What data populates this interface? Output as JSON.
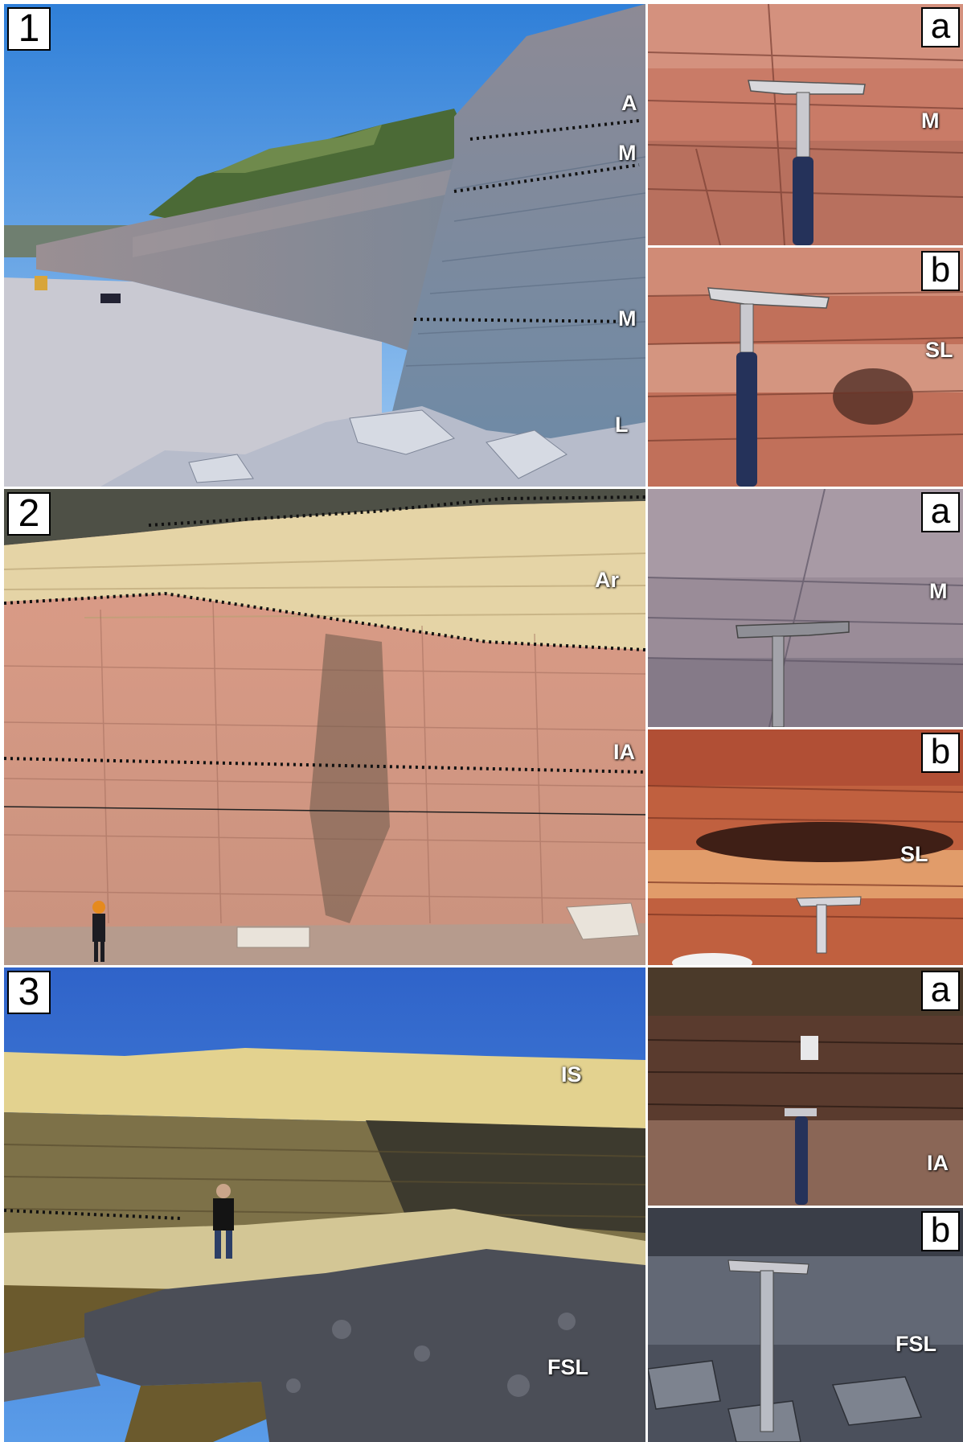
{
  "figure": {
    "panel1": {
      "number": "1",
      "labels": {
        "a": "A",
        "m_top": "M",
        "m_low": "M",
        "l": "L"
      },
      "inset_a": {
        "letter": "a",
        "label": "M"
      },
      "inset_b": {
        "letter": "b",
        "label": "SL"
      }
    },
    "panel2": {
      "number": "2",
      "labels": {
        "ar": "Ar",
        "ia": "IA"
      },
      "inset_a": {
        "letter": "a",
        "label": "M"
      },
      "inset_b": {
        "letter": "b",
        "label": "SL"
      }
    },
    "panel3": {
      "number": "3",
      "labels": {
        "is": "IS",
        "fsl": "FSL"
      },
      "inset_a": {
        "letter": "a",
        "label": "IA"
      },
      "inset_b": {
        "letter": "b",
        "label": "FSL"
      }
    }
  },
  "colors": {
    "sky": "#3f8fe0",
    "grey_rock": "#8e9cb0",
    "pink_rock": "#d79a86",
    "red_rock": "#c06a4c",
    "cream_rock": "#e2cf9c",
    "dark_shale": "#3b3d44"
  },
  "icons": {
    "hammer": "rock-hammer-icon",
    "person": "person-icon"
  }
}
